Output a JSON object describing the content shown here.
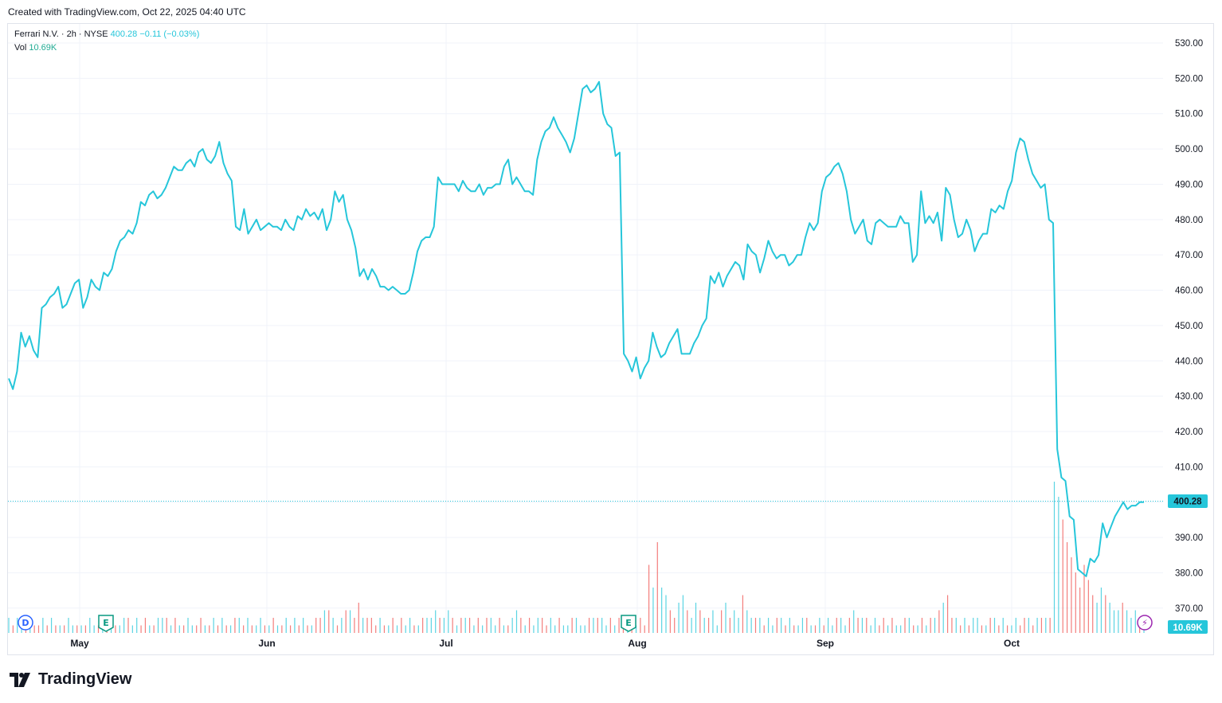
{
  "header": {
    "created_text": "Created with TradingView.com, Oct 22, 2025 04:40 UTC"
  },
  "legend": {
    "symbol_line": "Ferrari N.V. · 2h · NYSE",
    "last_price": "400.28",
    "change": "−0.11 (−0.03%)",
    "vol_label": "Vol",
    "vol_value": "10.69K"
  },
  "price_badge": "400.28",
  "volume_badge": "10.69K",
  "markers": [
    {
      "name": "dividend-marker",
      "letter": "D",
      "color": "#2962ff"
    },
    {
      "name": "earnings-marker-1",
      "letter": "E",
      "color": "#089981"
    },
    {
      "name": "earnings-marker-2",
      "letter": "E",
      "color": "#089981"
    },
    {
      "name": "lightning-marker",
      "letter": "⚡",
      "color": "#9c27b0"
    }
  ],
  "footer": {
    "brand": "TradingView"
  },
  "colors": {
    "line": "#26c6da",
    "vol_up": "#26c6da",
    "vol_down": "#ef5350",
    "grid": "#f0f3fa"
  },
  "chart_data": {
    "type": "line",
    "y_ticks": [
      "530.00",
      "520.00",
      "510.00",
      "500.00",
      "490.00",
      "480.00",
      "470.00",
      "460.00",
      "450.00",
      "440.00",
      "430.00",
      "420.00",
      "410.00",
      "400.00",
      "390.00",
      "380.00",
      "370.00"
    ],
    "x_ticks": [
      "May",
      "Jun",
      "Jul",
      "Aug",
      "Sep",
      "Oct"
    ],
    "ylim": [
      365,
      535
    ],
    "grid": true,
    "series": [
      {
        "values": [
          435,
          432,
          437,
          448,
          444,
          447,
          443,
          441,
          455,
          456,
          458,
          459,
          461,
          455,
          456,
          459,
          462,
          463,
          455,
          458,
          463,
          461,
          460,
          465,
          464,
          466,
          471,
          474,
          475,
          477,
          476,
          479,
          485,
          484,
          487,
          488,
          486,
          487,
          489,
          492,
          495,
          494,
          494,
          496,
          497,
          495,
          499,
          500,
          497,
          496,
          498,
          502,
          496,
          493,
          491,
          478,
          477,
          483,
          476,
          478,
          480,
          477,
          478,
          479,
          478,
          478,
          477,
          480,
          478,
          477,
          481,
          480,
          483,
          481,
          482,
          480,
          483,
          477,
          480,
          488,
          485,
          487,
          480,
          477,
          472,
          464,
          466,
          463,
          466,
          464,
          461,
          461,
          460,
          461,
          460,
          459,
          459,
          460,
          465,
          471,
          474,
          475,
          475,
          478,
          492,
          490,
          490,
          490,
          490,
          488,
          491,
          489,
          488,
          488,
          490,
          487,
          489,
          489,
          490,
          490,
          495,
          497,
          490,
          492,
          490,
          488,
          488,
          487,
          497,
          502,
          505,
          506,
          509,
          506,
          504,
          502,
          499,
          503,
          510,
          517,
          518,
          516,
          517,
          519,
          510,
          507,
          506,
          498,
          499,
          442,
          440,
          437,
          441,
          435,
          438,
          440,
          448,
          444,
          441,
          442,
          445,
          447,
          449,
          442,
          442,
          442,
          445,
          447,
          450,
          452,
          464,
          462,
          465,
          461,
          464,
          466,
          468,
          467,
          463,
          473,
          471,
          470,
          465,
          469,
          474,
          471,
          469,
          470,
          470,
          467,
          468,
          470,
          470,
          475,
          479,
          477,
          479,
          488,
          492,
          493,
          495,
          496,
          493,
          488,
          480,
          476,
          478,
          480,
          474,
          473,
          479,
          480,
          479,
          478,
          478,
          478,
          481,
          479,
          479,
          468,
          470,
          488,
          479,
          481,
          479,
          482,
          474,
          489,
          487,
          480,
          475,
          476,
          480,
          477,
          471,
          474,
          476,
          476,
          483,
          482,
          484,
          483,
          488,
          491,
          499,
          503,
          502,
          497,
          493,
          491,
          489,
          490,
          480,
          479,
          415,
          407,
          406,
          396,
          395,
          381,
          380,
          379,
          384,
          383,
          385,
          394,
          390,
          393,
          396,
          398,
          400,
          398,
          399,
          399,
          400,
          400
        ]
      }
    ],
    "volume": {
      "values": [
        2,
        1,
        2,
        1,
        1,
        2,
        1,
        1,
        2,
        1,
        2,
        1,
        1,
        1,
        2,
        1,
        1,
        1,
        1,
        2,
        1,
        1,
        2,
        1,
        2,
        1,
        1,
        2,
        2,
        1,
        2,
        1,
        2,
        1,
        1,
        2,
        2,
        2,
        1,
        2,
        1,
        1,
        2,
        1,
        1,
        2,
        1,
        1,
        2,
        1,
        2,
        1,
        1,
        2,
        2,
        1,
        2,
        1,
        1,
        2,
        1,
        1,
        2,
        1,
        1,
        2,
        1,
        2,
        1,
        2,
        1,
        1,
        2,
        2,
        3,
        3,
        2,
        1,
        2,
        3,
        3,
        2,
        4,
        2,
        2,
        2,
        1,
        2,
        1,
        1,
        2,
        1,
        2,
        1,
        2,
        1,
        1,
        2,
        2,
        2,
        3,
        2,
        2,
        3,
        2,
        1,
        2,
        2,
        2,
        1,
        2,
        1,
        2,
        2,
        1,
        2,
        1,
        1,
        2,
        3,
        2,
        1,
        2,
        1,
        2,
        2,
        1,
        2,
        1,
        2,
        1,
        1,
        2,
        2,
        1,
        1,
        2,
        2,
        2,
        2,
        1,
        2,
        1,
        2,
        2,
        1,
        2,
        1,
        2,
        1,
        9,
        6,
        12,
        6,
        5,
        3,
        2,
        4,
        5,
        3,
        2,
        4,
        3,
        2,
        2,
        3,
        1,
        3,
        4,
        2,
        3,
        2,
        5,
        3,
        2,
        2,
        2,
        1,
        2,
        1,
        2,
        2,
        1,
        2,
        1,
        1,
        2,
        2,
        1,
        1,
        2,
        1,
        2,
        1,
        2,
        2,
        1,
        2,
        3,
        2,
        2,
        2,
        1,
        2,
        1,
        2,
        1,
        2,
        1,
        1,
        2,
        2,
        1,
        1,
        2,
        1,
        2,
        2,
        3,
        4,
        5,
        2,
        2,
        1,
        2,
        1,
        2,
        2,
        1,
        1,
        2,
        2,
        1,
        2,
        1,
        1,
        2,
        1,
        2,
        2,
        1,
        2,
        2,
        2,
        2,
        20,
        18,
        15,
        12,
        10,
        8,
        6,
        9,
        7,
        5,
        4,
        6,
        5,
        4,
        3,
        3,
        4,
        3,
        2,
        3,
        2,
        2
      ],
      "up": [
        1,
        0,
        1,
        1,
        0,
        1,
        0,
        0,
        1,
        0,
        1,
        0,
        1,
        0,
        1,
        1,
        0,
        1,
        0,
        1,
        1,
        0,
        1,
        0,
        1,
        0,
        1,
        1,
        0,
        1,
        1,
        0,
        0,
        1,
        0,
        1,
        1,
        0,
        1,
        0,
        1,
        0,
        1,
        1,
        0,
        0,
        1,
        0,
        1,
        0,
        1,
        0,
        1,
        0,
        1,
        0,
        1,
        0,
        1,
        1,
        0,
        1,
        0,
        1,
        0,
        1,
        0,
        1,
        0,
        1,
        0,
        1,
        0,
        0,
        1,
        0,
        1,
        0,
        1,
        0,
        1,
        0,
        0,
        1,
        0,
        0,
        0,
        1,
        0,
        1,
        0,
        1,
        0,
        1,
        1,
        0,
        1,
        0,
        1,
        1,
        1,
        0,
        1,
        1,
        0,
        1,
        0,
        1,
        0,
        1,
        0,
        1,
        0,
        1,
        1,
        0,
        1,
        0,
        1,
        1,
        0,
        1,
        0,
        1,
        1,
        0,
        0,
        1,
        1,
        0,
        1,
        1,
        0,
        1,
        1,
        1,
        0,
        1,
        0,
        1,
        1,
        0,
        1,
        0,
        0,
        1,
        0,
        1,
        0,
        0,
        0,
        1,
        0,
        1,
        1,
        0,
        0,
        1,
        1,
        0,
        1,
        1,
        0,
        1,
        0,
        1,
        1,
        0,
        1,
        0,
        1,
        1,
        0,
        1,
        1,
        0,
        1,
        0,
        1,
        1,
        0,
        1,
        0,
        1,
        0,
        1,
        1,
        0,
        1,
        0,
        1,
        0,
        1,
        1,
        0,
        1,
        1,
        0,
        1,
        0,
        1,
        0,
        1,
        1,
        0,
        0,
        1,
        0,
        1,
        1,
        0,
        1,
        0,
        1,
        0,
        1,
        0,
        1,
        0,
        1,
        0,
        0,
        1,
        0,
        1,
        0,
        1,
        1,
        0,
        1,
        0,
        1,
        0,
        1,
        0,
        1,
        1,
        0,
        0,
        1,
        0,
        1,
        0,
        1,
        0,
        1,
        1,
        0,
        0,
        0,
        0,
        0,
        0,
        0,
        0,
        1,
        1,
        0,
        1,
        1,
        1,
        0,
        1,
        1,
        1,
        0,
        1,
        1,
        1,
        1
      ]
    },
    "last_value": 400.28
  }
}
